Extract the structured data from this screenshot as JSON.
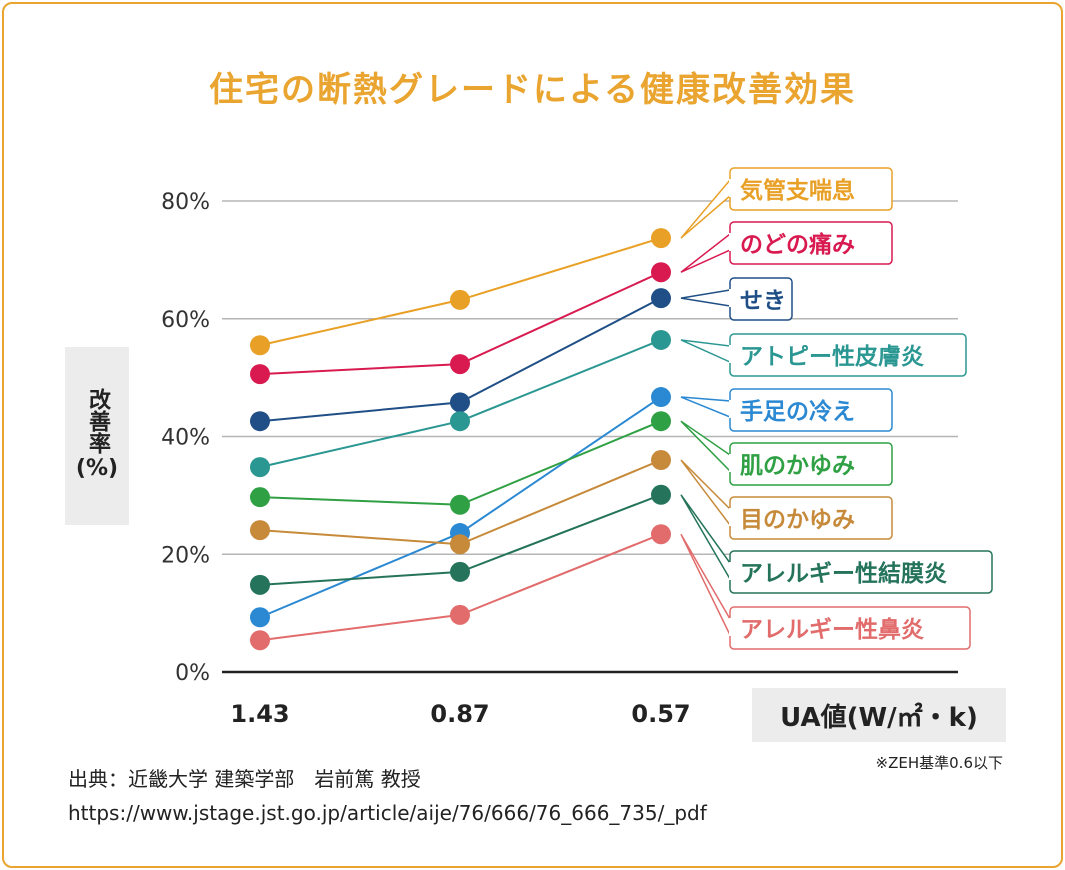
{
  "title": "住宅の断熱グレードによる健康改善効果",
  "chart_data": {
    "type": "line",
    "title": "住宅の断熱グレードによる健康改善効果",
    "ylabel": "改善率(%)",
    "ylabel_main": "改善率",
    "ylabel_unit": "(%)",
    "xlabel": "UA値(W/㎡・k)",
    "categories": [
      "1.43",
      "0.87",
      "0.57"
    ],
    "ylim": [
      0,
      80
    ],
    "yticks": [
      "0%",
      "20%",
      "40%",
      "60%",
      "80%"
    ],
    "grid": true,
    "legend_placement": "right (callout labels)",
    "series": [
      {
        "name": "気管支喘息",
        "color": "#e9a026",
        "values": [
          55.5,
          63.2,
          73.7
        ]
      },
      {
        "name": "のどの痛み",
        "color": "#d81a50",
        "values": [
          50.6,
          52.3,
          67.9
        ]
      },
      {
        "name": "せき",
        "color": "#1f4f86",
        "values": [
          42.6,
          45.8,
          63.5
        ]
      },
      {
        "name": "アトピー性皮膚炎",
        "color": "#2b9792",
        "values": [
          34.8,
          42.6,
          56.4
        ]
      },
      {
        "name": "手足の冷え",
        "color": "#2a89d2",
        "values": [
          9.3,
          23.6,
          46.7
        ]
      },
      {
        "name": "肌のかゆみ",
        "color": "#2fa043",
        "values": [
          29.7,
          28.4,
          42.6
        ]
      },
      {
        "name": "目のかゆみ",
        "color": "#c68a3a",
        "values": [
          24.1,
          21.7,
          36.0
        ]
      },
      {
        "name": "アレルギー性結膜炎",
        "color": "#24735a",
        "values": [
          14.8,
          17.0,
          30.1
        ]
      },
      {
        "name": "アレルギー性鼻炎",
        "color": "#e26c6c",
        "values": [
          5.4,
          9.7,
          23.4
        ]
      }
    ]
  },
  "note": "※ZEH基準0.6以下",
  "source": {
    "line1": "出典：近畿大学 建築学部　岩前篤 教授",
    "line2": "https://www.jstage.jst.go.jp/article/aije/76/666/76_666_735/_pdf"
  }
}
